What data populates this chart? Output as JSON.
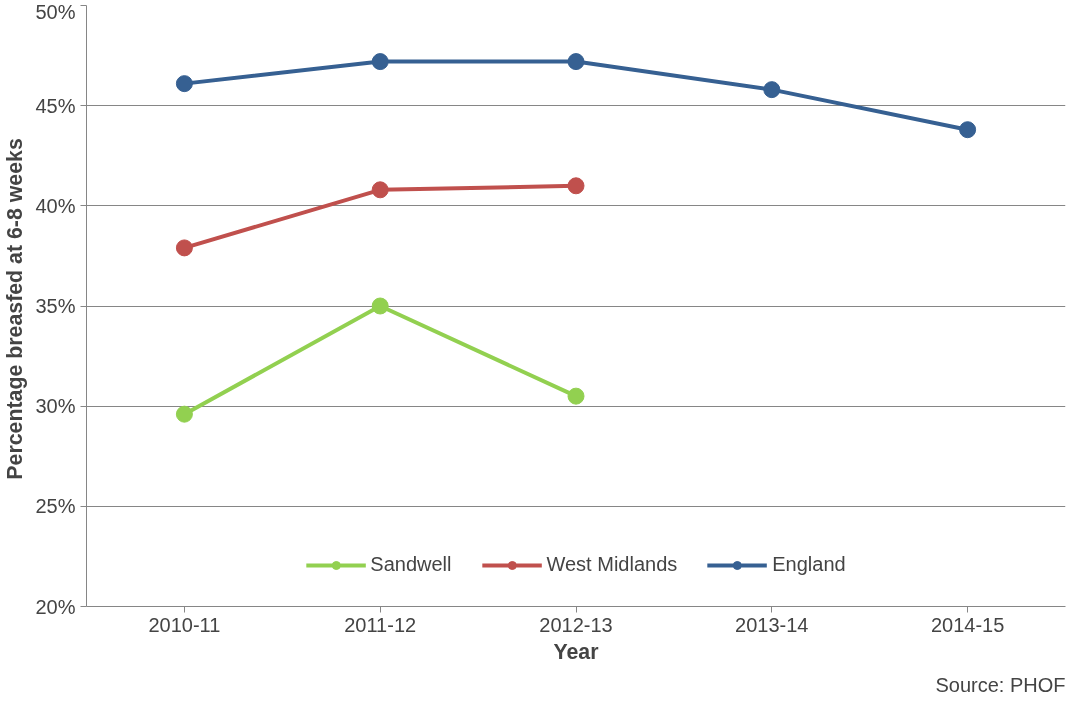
{
  "chart_data": {
    "type": "line",
    "xlabel": "Year",
    "ylabel": "Percentage  breasfed at 6-8 weeks",
    "categories": [
      "2010-11",
      "2011-12",
      "2012-13",
      "2013-14",
      "2014-15"
    ],
    "series": [
      {
        "name": "Sandwell",
        "color": "#92d050",
        "values": [
          29.6,
          35.0,
          30.5,
          null,
          null
        ]
      },
      {
        "name": "West Midlands",
        "color": "#c0504d",
        "values": [
          37.9,
          40.8,
          41.0,
          null,
          null
        ]
      },
      {
        "name": "England",
        "color": "#366092",
        "values": [
          46.1,
          47.2,
          47.2,
          45.8,
          43.8
        ]
      }
    ],
    "ylim": [
      20,
      50
    ],
    "yticks": [
      {
        "value": 20,
        "label": "20%"
      },
      {
        "value": 25,
        "label": "25%"
      },
      {
        "value": 30,
        "label": "30%"
      },
      {
        "value": 35,
        "label": "35%"
      },
      {
        "value": 40,
        "label": "40%"
      },
      {
        "value": 45,
        "label": "45%"
      },
      {
        "value": 50,
        "label": "50%"
      }
    ],
    "grid": "y",
    "legend": "bottom",
    "marker": "circle",
    "line_style": "solid",
    "annotations": [
      "Source: PHOF"
    ]
  }
}
